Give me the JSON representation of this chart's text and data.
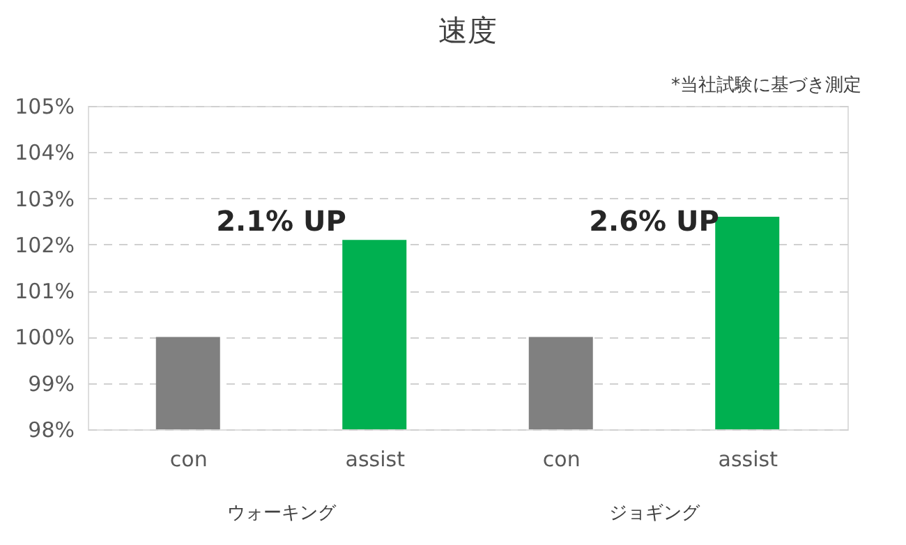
{
  "chart_data": {
    "type": "bar",
    "title": "速度",
    "categories": [
      "con",
      "assist",
      "con",
      "assist"
    ],
    "values": [
      100,
      102.1,
      100,
      102.6
    ],
    "colors": [
      "#808080",
      "#00b050",
      "#808080",
      "#00b050"
    ],
    "ylim": [
      98,
      105
    ],
    "yticks": [
      {
        "value": 98,
        "label": "98%"
      },
      {
        "value": 99,
        "label": "99%"
      },
      {
        "value": 100,
        "label": "100%"
      },
      {
        "value": 101,
        "label": "101%"
      },
      {
        "value": 102,
        "label": "102%"
      },
      {
        "value": 103,
        "label": "103%"
      },
      {
        "value": 104,
        "label": "104%"
      },
      {
        "value": 105,
        "label": "105%"
      }
    ],
    "grid": "y",
    "annotations": [
      "*当社試験に基づき測定",
      "2.1% UP",
      "2.6% UP",
      "ウォーキング",
      "ジョギング"
    ]
  }
}
